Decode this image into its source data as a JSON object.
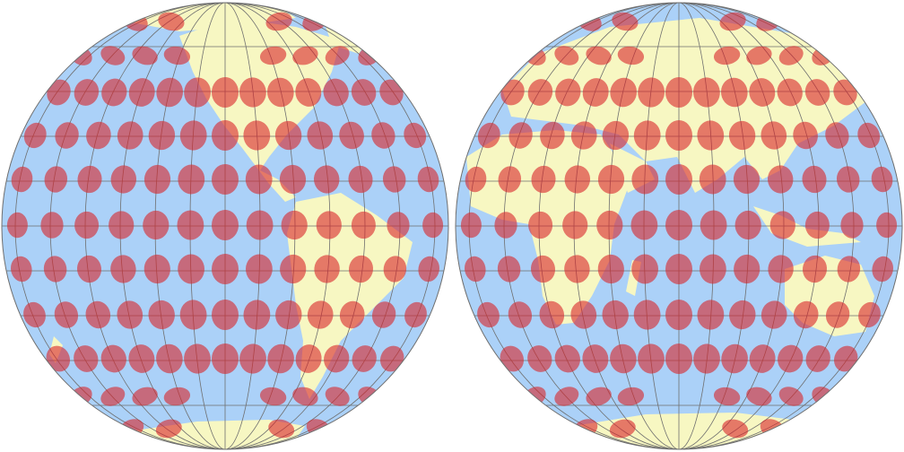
{
  "map": {
    "colors": {
      "ocean": "#abd1f8",
      "land": "#f7f7c2",
      "indicatrix": "#d8242a",
      "graticule": "#6f6f6f",
      "background": "#ffffff"
    },
    "hemispheres": [
      "western",
      "eastern"
    ],
    "graticule_step_deg": 15,
    "indicatrix_opacity": 0.6
  }
}
